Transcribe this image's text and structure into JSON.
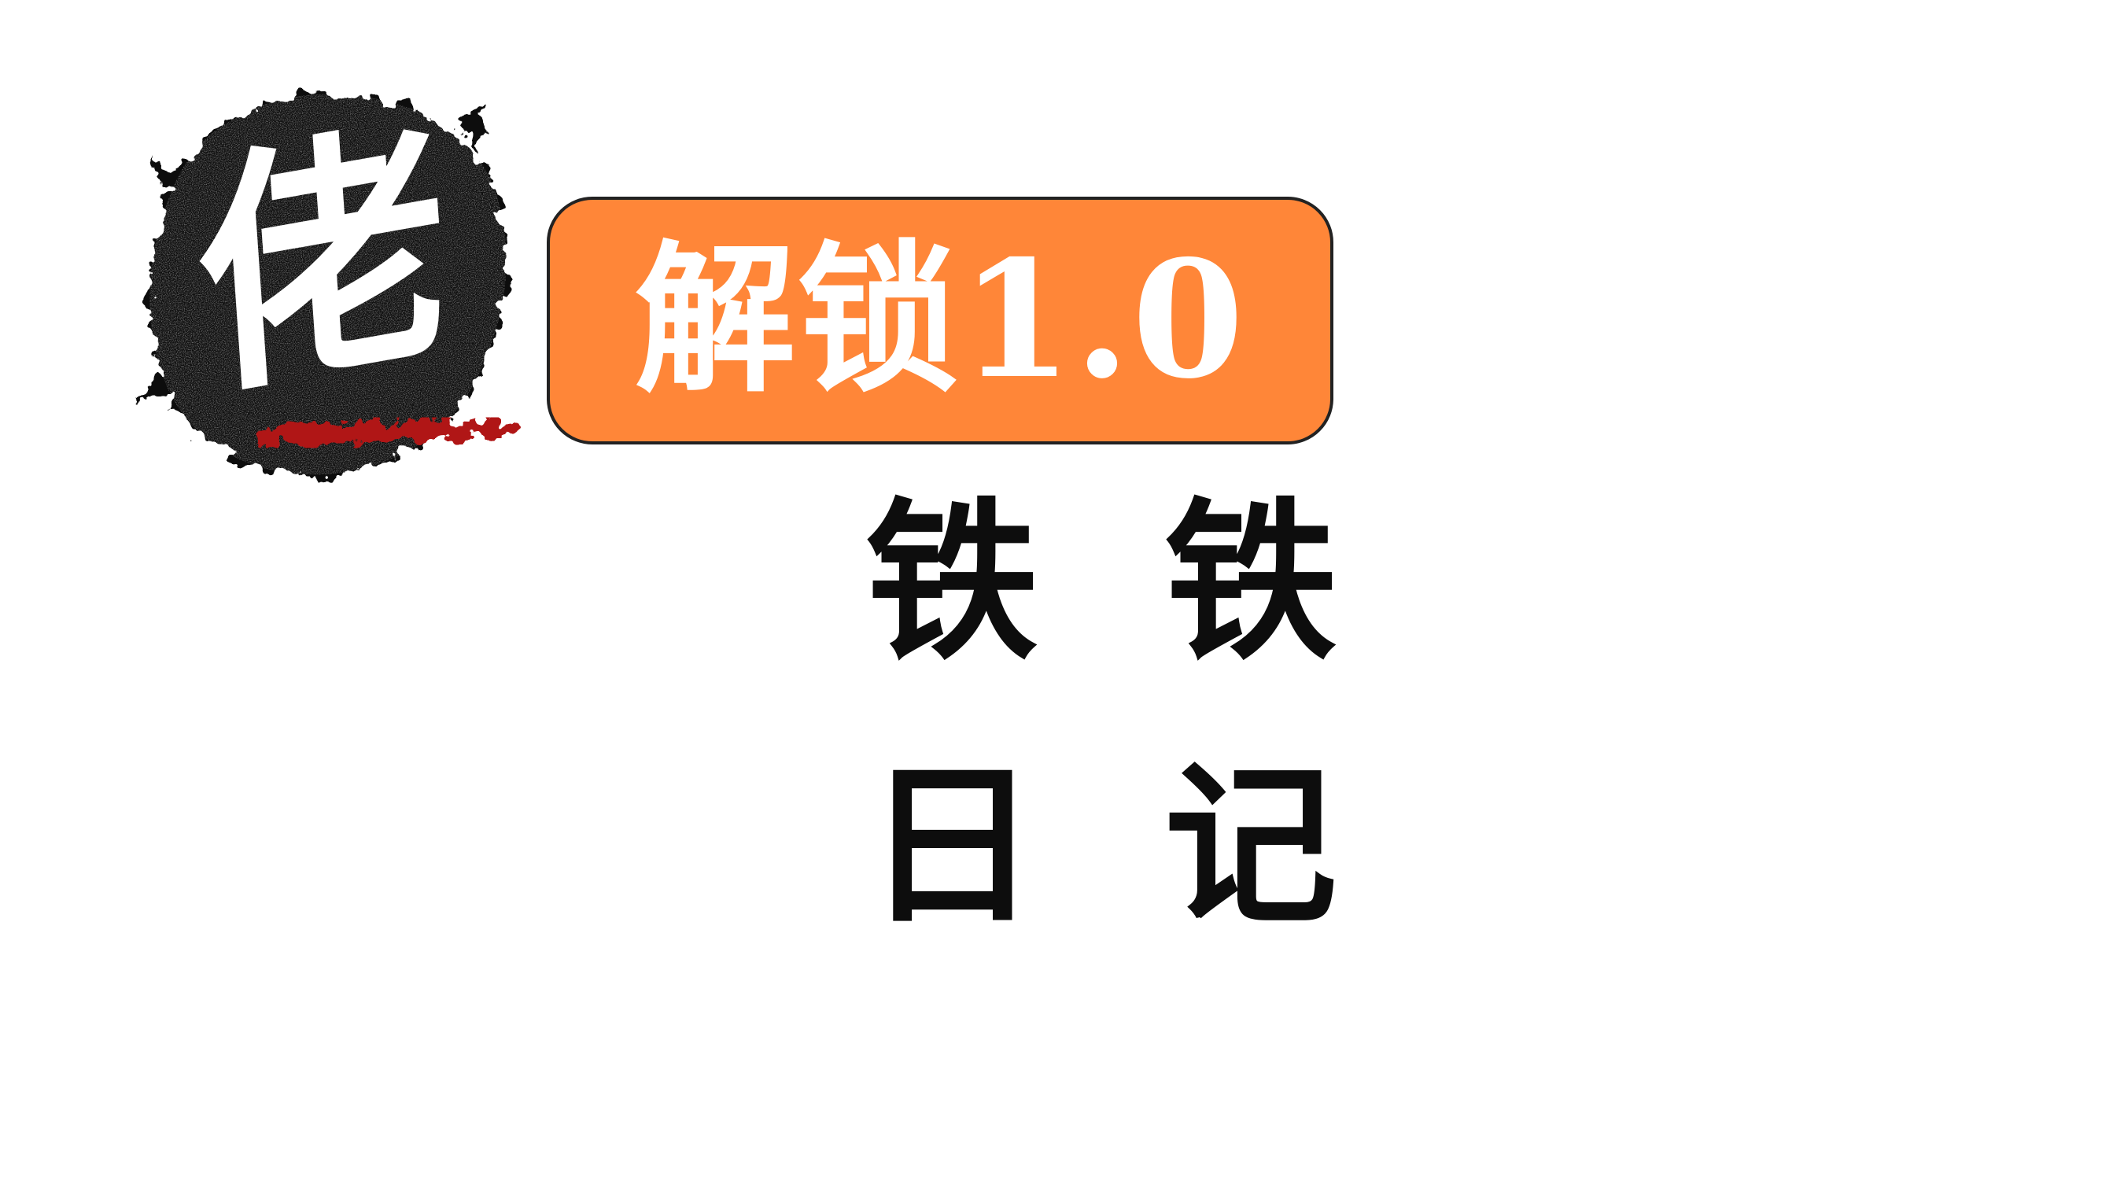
{
  "logo": {
    "character": "佬",
    "ink_color": "#111111",
    "accent_color": "#b01818"
  },
  "badge": {
    "text": "解锁1.0",
    "background_color": "#ff8638"
  },
  "title": {
    "line_1": [
      "铁",
      "铁"
    ],
    "line_2": [
      "日",
      "记"
    ]
  }
}
